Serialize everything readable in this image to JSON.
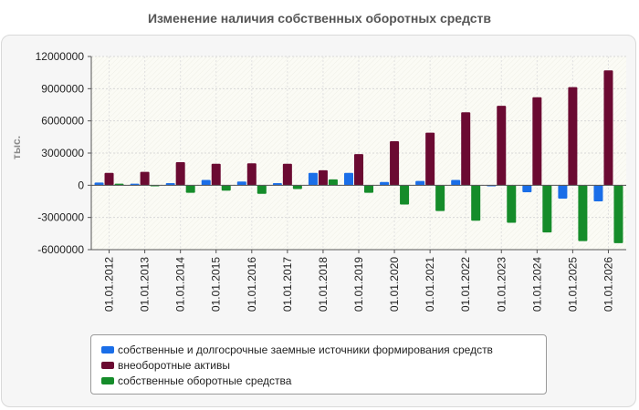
{
  "chart_data": {
    "type": "bar",
    "title": "Изменение наличия собственных оборотных средств",
    "ylabel": "тыс.",
    "xlabel": "",
    "ylim": [
      -6000000,
      12000000
    ],
    "yticks": [
      12000000,
      9000000,
      6000000,
      3000000,
      0,
      -3000000,
      -6000000
    ],
    "grid": true,
    "legend_position": "bottom",
    "categories": [
      "01.01.2012",
      "01.01.2013",
      "01.01.2014",
      "01.01.2015",
      "01.01.2016",
      "01.01.2017",
      "01.01.2018",
      "01.01.2019",
      "01.01.2020",
      "01.01.2021",
      "01.01.2022",
      "01.01.2023",
      "01.01.2024",
      "01.01.2025",
      "01.01.2026"
    ],
    "series": [
      {
        "name": "собственные и долгосрочные заемные источники формирования средств",
        "color": "#1a6ee8",
        "values": [
          250000,
          150000,
          200000,
          500000,
          350000,
          200000,
          1150000,
          1150000,
          300000,
          400000,
          500000,
          -100000,
          -650000,
          -1250000,
          -1500000
        ]
      },
      {
        "name": "внеоборотные активы",
        "color": "#6b0a32",
        "values": [
          1150000,
          1250000,
          2150000,
          2000000,
          2050000,
          2000000,
          1400000,
          2900000,
          4100000,
          4900000,
          6800000,
          7400000,
          8200000,
          9150000,
          10700000
        ]
      },
      {
        "name": "собственные оборотные средства",
        "color": "#158c2a",
        "values": [
          150000,
          -100000,
          -700000,
          -500000,
          -800000,
          -350000,
          550000,
          -700000,
          -1800000,
          -2400000,
          -3300000,
          -3500000,
          -4400000,
          -5200000,
          -5400000
        ]
      }
    ]
  }
}
